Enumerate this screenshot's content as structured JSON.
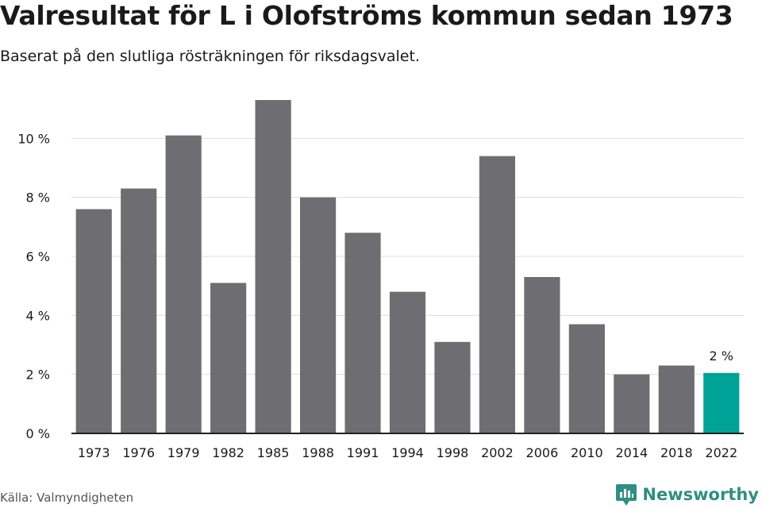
{
  "header": {
    "title": "Valresultat för L i Olofströms kommun sedan 1973",
    "subtitle": "Baserat på den slutliga rösträkningen för riksdagsvalet."
  },
  "footer": {
    "source": "Källa: Valmyndigheten",
    "brand": "Newsworthy"
  },
  "colors": {
    "bar": "#6e6d72",
    "highlight": "#00a398",
    "grid": "#dddddd",
    "axis": "#222222",
    "text": "#1a1a1a",
    "brand": "#2f8f83"
  },
  "chart_data": {
    "type": "bar",
    "title": "Valresultat för L i Olofströms kommun sedan 1973",
    "xlabel": "",
    "ylabel": "",
    "ylim": [
      0,
      12
    ],
    "yticks": [
      0,
      2,
      4,
      6,
      8,
      10
    ],
    "ytick_labels": [
      "0 %",
      "2 %",
      "4 %",
      "6 %",
      "8 %",
      "10 %"
    ],
    "categories": [
      "1973",
      "1976",
      "1979",
      "1982",
      "1985",
      "1988",
      "1991",
      "1994",
      "1998",
      "2002",
      "2006",
      "2010",
      "2014",
      "2018",
      "2022"
    ],
    "values": [
      7.6,
      8.3,
      10.1,
      5.1,
      11.3,
      8.0,
      6.8,
      4.8,
      3.1,
      9.4,
      5.3,
      3.7,
      2.0,
      2.3,
      2.05
    ],
    "highlight_index": 14,
    "highlight_label": "2 %",
    "grid": true
  }
}
